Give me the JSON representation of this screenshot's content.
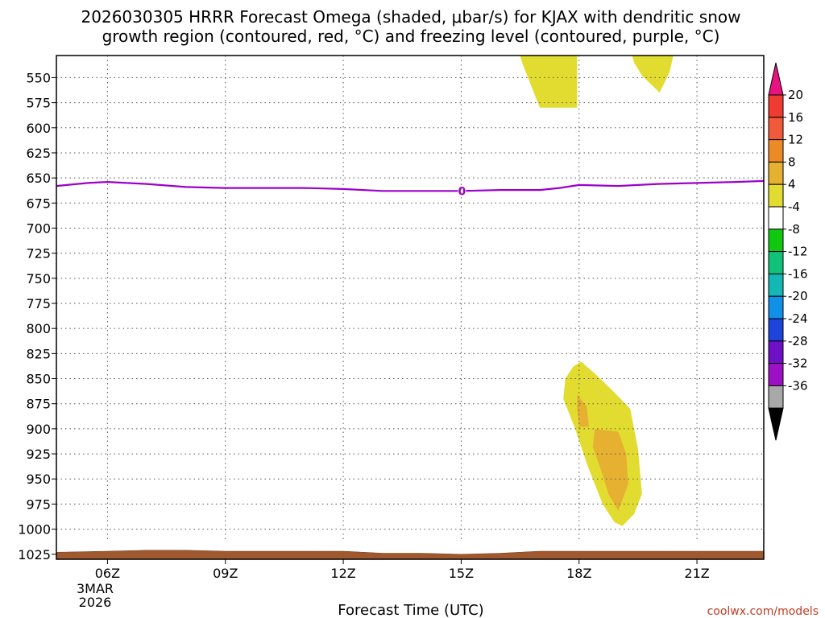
{
  "chart_data": {
    "type": "heatmap",
    "title_line1": "2026030305 HRRR Forecast Omega (shaded, μbar/s) for KJAX with dendritic snow",
    "title_line2": "growth region (contoured, red, °C) and freezing level (contoured, purple, °C)",
    "xlabel": "Forecast Time (UTC)",
    "credit": "coolwx.com/models",
    "x_range_hours": [
      4.7,
      22.7
    ],
    "x_ticks": [
      {
        "hour": 6,
        "label": "06Z"
      },
      {
        "hour": 9,
        "label": "09Z"
      },
      {
        "hour": 12,
        "label": "12Z"
      },
      {
        "hour": 15,
        "label": "15Z"
      },
      {
        "hour": 18,
        "label": "18Z"
      },
      {
        "hour": 21,
        "label": "21Z"
      }
    ],
    "date_label_line1": "3MAR",
    "date_label_line2": "2026",
    "y_range_hpa": [
      1030,
      528
    ],
    "y_ticks": [
      550,
      575,
      600,
      625,
      650,
      675,
      700,
      725,
      750,
      775,
      800,
      825,
      850,
      875,
      900,
      925,
      950,
      975,
      1000,
      1025
    ],
    "colorbar": {
      "labels": [
        "20",
        "16",
        "12",
        "8",
        "4",
        "-4",
        "-8",
        "-12",
        "-16",
        "-20",
        "-24",
        "-28",
        "-32",
        "-36"
      ],
      "colors": [
        "#e8137f",
        "#ee3c33",
        "#f05a3a",
        "#ec8a28",
        "#e6b030",
        "#e2dc30",
        "#ffffff",
        "#11c811",
        "#11c27a",
        "#13b8b4",
        "#1190e8",
        "#1e44dc",
        "#6d10c6",
        "#9e10c6",
        "#a8a8a8",
        "#000000"
      ]
    },
    "freezing_level": {
      "label": "0",
      "color": "#9b00cc",
      "points": [
        [
          4.7,
          658
        ],
        [
          5.5,
          655
        ],
        [
          6.0,
          654
        ],
        [
          7.0,
          656
        ],
        [
          8.0,
          659
        ],
        [
          9.0,
          660
        ],
        [
          10.0,
          660
        ],
        [
          11.0,
          660
        ],
        [
          12.0,
          661
        ],
        [
          13.0,
          663
        ],
        [
          14.0,
          663
        ],
        [
          15.0,
          663
        ],
        [
          16.0,
          662
        ],
        [
          17.0,
          662
        ],
        [
          17.5,
          660
        ],
        [
          18.0,
          657
        ],
        [
          19.0,
          658
        ],
        [
          20.0,
          656
        ],
        [
          21.0,
          655
        ],
        [
          22.0,
          654
        ],
        [
          22.7,
          653
        ]
      ]
    },
    "omega_regions": [
      {
        "level": "4-8",
        "color": "#e2dc30",
        "points": [
          [
            16.5,
            528
          ],
          [
            17.95,
            528
          ],
          [
            17.95,
            580
          ],
          [
            17.5,
            580
          ],
          [
            17.0,
            580
          ],
          [
            16.7,
            550
          ],
          [
            16.55,
            535
          ]
        ]
      },
      {
        "level": "4-8",
        "color": "#e2dc30",
        "points": [
          [
            19.35,
            528
          ],
          [
            20.4,
            528
          ],
          [
            20.3,
            545
          ],
          [
            20.05,
            565
          ],
          [
            19.6,
            548
          ],
          [
            19.4,
            535
          ]
        ]
      },
      {
        "level": "4-8",
        "color": "#e2dc30",
        "points": [
          [
            18.05,
            833
          ],
          [
            18.4,
            845
          ],
          [
            18.8,
            860
          ],
          [
            19.3,
            880
          ],
          [
            19.5,
            920
          ],
          [
            19.6,
            965
          ],
          [
            19.4,
            985
          ],
          [
            19.1,
            997
          ],
          [
            18.9,
            993
          ],
          [
            18.6,
            975
          ],
          [
            18.2,
            935
          ],
          [
            17.9,
            900
          ],
          [
            17.6,
            870
          ],
          [
            17.65,
            850
          ],
          [
            17.85,
            838
          ]
        ]
      },
      {
        "level": "8-12",
        "color": "#e6b030",
        "points": [
          [
            17.95,
            866
          ],
          [
            18.2,
            878
          ],
          [
            18.25,
            898
          ],
          [
            18.0,
            898
          ],
          [
            17.95,
            880
          ]
        ]
      },
      {
        "level": "8-12",
        "color": "#e6b030",
        "points": [
          [
            18.4,
            900
          ],
          [
            19.0,
            903
          ],
          [
            19.2,
            925
          ],
          [
            19.25,
            955
          ],
          [
            19.0,
            982
          ],
          [
            18.75,
            965
          ],
          [
            18.55,
            940
          ],
          [
            18.35,
            918
          ]
        ]
      }
    ],
    "ground": {
      "color": "#a0582e",
      "points": [
        [
          4.7,
          1023
        ],
        [
          6.0,
          1022
        ],
        [
          7.0,
          1021
        ],
        [
          8.0,
          1021
        ],
        [
          9.0,
          1022
        ],
        [
          10.0,
          1022
        ],
        [
          11.0,
          1022
        ],
        [
          12.0,
          1022
        ],
        [
          13.0,
          1024
        ],
        [
          14.0,
          1024
        ],
        [
          15.0,
          1025
        ],
        [
          16.0,
          1024
        ],
        [
          17.0,
          1022
        ],
        [
          18.0,
          1022
        ],
        [
          19.0,
          1022
        ],
        [
          20.0,
          1022
        ],
        [
          21.0,
          1022
        ],
        [
          22.0,
          1022
        ],
        [
          22.7,
          1022
        ]
      ]
    }
  }
}
